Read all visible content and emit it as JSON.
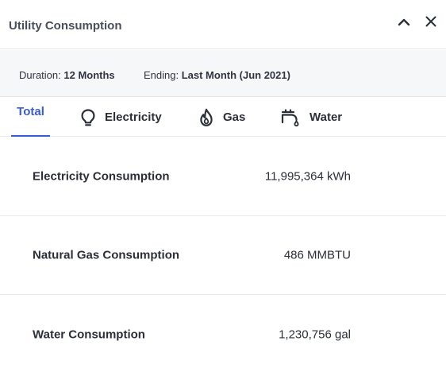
{
  "header": {
    "title": "Utility Consumption",
    "collapse_icon": "chevron-up-icon",
    "close_icon": "close-icon"
  },
  "meta": {
    "duration_label": "Duration:",
    "duration_value": "12 Months",
    "ending_label": "Ending:",
    "ending_value": "Last Month (Jun 2021)"
  },
  "tabs": [
    {
      "label": "Total",
      "icon": null,
      "active": true
    },
    {
      "label": "Electricity",
      "icon": "lightbulb-icon",
      "active": false
    },
    {
      "label": "Gas",
      "icon": "flame-icon",
      "active": false
    },
    {
      "label": "Water",
      "icon": "faucet-icon",
      "active": false
    }
  ],
  "rows": [
    {
      "label": "Electricity Consumption",
      "value": "11,995,364 kWh"
    },
    {
      "label": "Natural Gas Consumption",
      "value": "486 MMBTU"
    },
    {
      "label": "Water Consumption",
      "value": "1,230,756 gal"
    }
  ],
  "colors": {
    "accent": "#3a5bd9",
    "meta_bg": "#f6f7f9",
    "divider": "#e6e8ec",
    "text": "#2b2f38"
  }
}
